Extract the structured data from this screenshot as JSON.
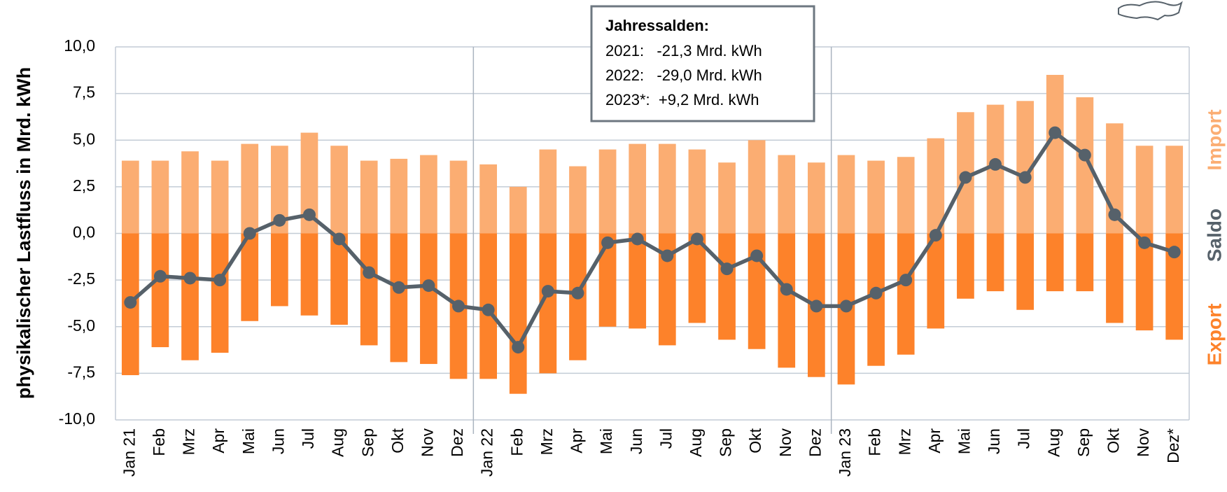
{
  "chart_data": {
    "type": "bar",
    "y_label": "physikalischer Lastfluss in Mrd. kWh",
    "categories": [
      "Jan 21",
      "Feb",
      "Mrz",
      "Apr",
      "Mai",
      "Jun",
      "Jul",
      "Aug",
      "Sep",
      "Okt",
      "Nov",
      "Dez",
      "Jan 22",
      "Feb",
      "Mrz",
      "Apr",
      "Mai",
      "Jun",
      "Jul",
      "Aug",
      "Sep",
      "Okt",
      "Nov",
      "Dez",
      "Jan 23",
      "Feb",
      "Mrz",
      "Apr",
      "Mai",
      "Jun",
      "Jul",
      "Aug",
      "Sep",
      "Okt",
      "Nov",
      "Dez*"
    ],
    "series": [
      {
        "name": "Import",
        "color": "#fbad72",
        "values": [
          3.9,
          3.9,
          4.4,
          3.9,
          4.8,
          4.7,
          5.4,
          4.7,
          3.9,
          4.0,
          4.2,
          3.9,
          3.7,
          2.5,
          4.5,
          3.6,
          4.5,
          4.8,
          4.8,
          4.5,
          3.8,
          5.0,
          4.2,
          3.8,
          4.2,
          3.9,
          4.1,
          5.1,
          6.5,
          6.9,
          7.1,
          8.5,
          7.3,
          5.9,
          4.7,
          4.7
        ]
      },
      {
        "name": "Saldo",
        "color": "#56616a",
        "type": "line",
        "values": [
          -3.7,
          -2.3,
          -2.4,
          -2.5,
          0.0,
          0.7,
          1.0,
          -0.3,
          -2.1,
          -2.9,
          -2.8,
          -3.9,
          -4.1,
          -6.1,
          -3.1,
          -3.2,
          -0.5,
          -0.3,
          -1.2,
          -0.3,
          -1.9,
          -1.2,
          -3.0,
          -3.9,
          -3.9,
          -3.2,
          -2.5,
          -0.1,
          3.0,
          3.7,
          3.0,
          5.4,
          4.2,
          1.0,
          -0.5,
          -1.0
        ]
      },
      {
        "name": "Export",
        "color": "#fd822a",
        "values": [
          -7.6,
          -6.1,
          -6.8,
          -6.4,
          -4.7,
          -3.9,
          -4.4,
          -4.9,
          -6.0,
          -6.9,
          -7.0,
          -7.8,
          -7.8,
          -8.6,
          -7.5,
          -6.8,
          -5.0,
          -5.1,
          -6.0,
          -4.8,
          -5.7,
          -6.2,
          -7.2,
          -7.7,
          -8.1,
          -7.1,
          -6.5,
          -5.1,
          -3.5,
          -3.1,
          -4.1,
          -3.1,
          -3.1,
          -4.8,
          -5.2,
          -5.7
        ]
      }
    ],
    "ylim": [
      -10,
      10
    ],
    "yticks": [
      {
        "value": -10,
        "label": "-10,0"
      },
      {
        "value": -7.5,
        "label": "-7,5"
      },
      {
        "value": -5,
        "label": "-5,0"
      },
      {
        "value": -2.5,
        "label": "-2,5"
      },
      {
        "value": 0,
        "label": "0,0"
      },
      {
        "value": 2.5,
        "label": "2,5"
      },
      {
        "value": 5,
        "label": "5,0"
      },
      {
        "value": 7.5,
        "label": "7,5"
      },
      {
        "value": 10,
        "label": "10,0"
      }
    ],
    "grid": true,
    "annotation": {
      "title": "Jahressalden:",
      "lines": [
        "2021:   -21,3 Mrd. kWh",
        "2022:   -29,0 Mrd. kWh",
        "2023*:  +9,2 Mrd. kWh"
      ]
    }
  }
}
